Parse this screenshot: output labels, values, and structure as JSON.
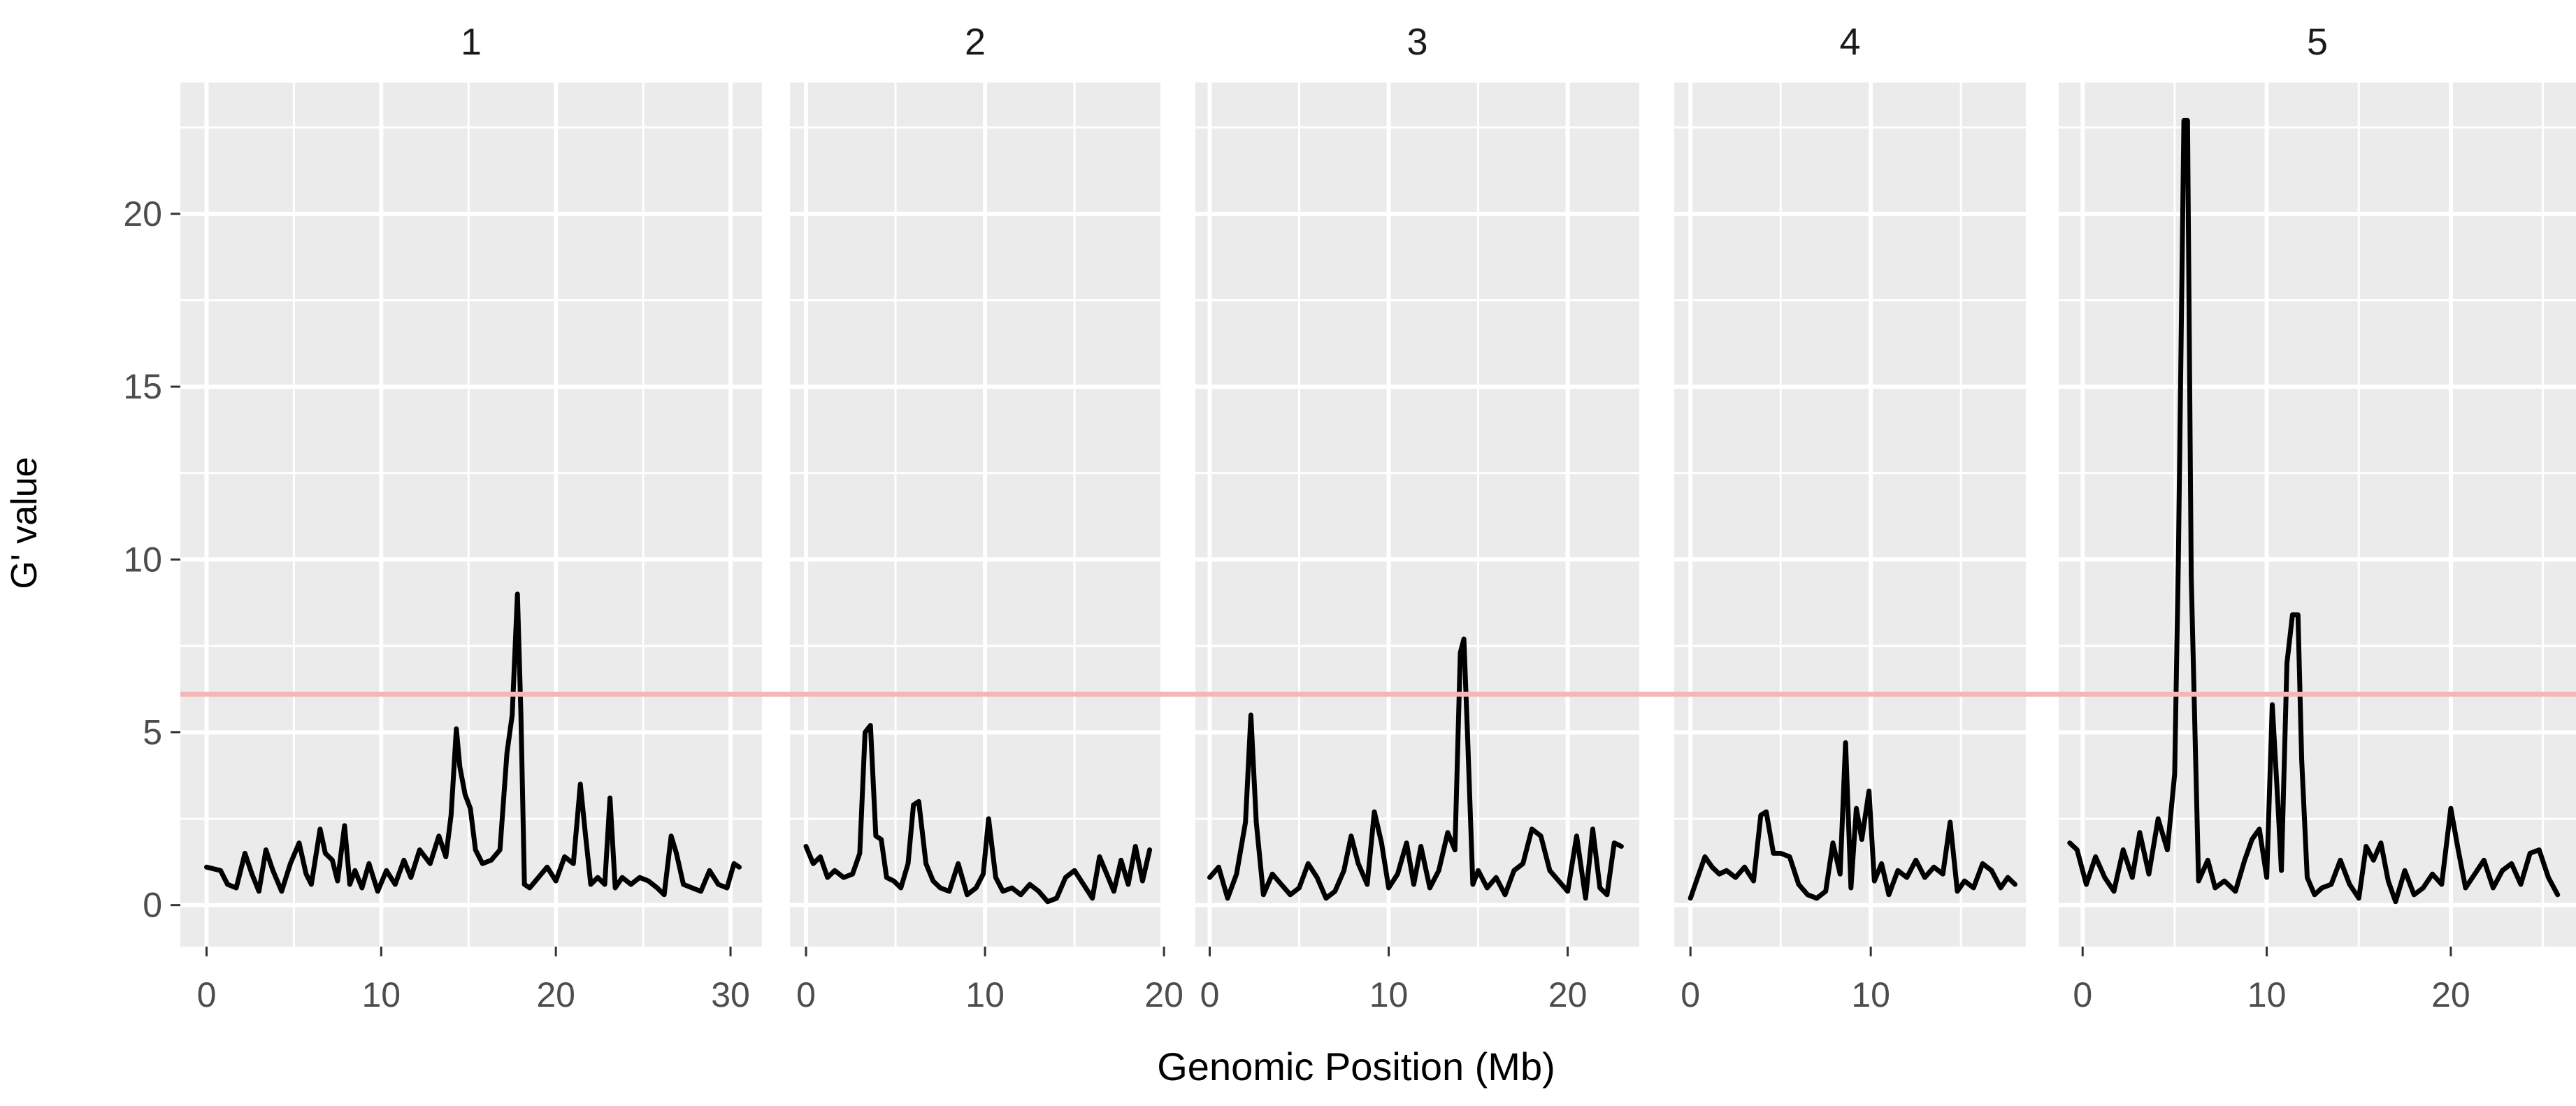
{
  "chart_data": {
    "type": "line",
    "xlabel": "Genomic Position (Mb)",
    "ylabel": "G' value",
    "ylim": [
      -1.2,
      23.8
    ],
    "yticks": [
      0,
      5,
      10,
      15,
      20
    ],
    "grid": true,
    "threshold": 6.1,
    "colors": {
      "line": "#000000",
      "threshold": "#f4b6b6",
      "panel_bg": "#ebebeb",
      "grid": "#ffffff",
      "tick_text": "#4d4d4d",
      "strip_text": "#1a1a1a"
    },
    "panels": [
      {
        "label": "1",
        "xlim": [
          -1.5,
          31.8
        ],
        "xticks": [
          0,
          10,
          20,
          30
        ],
        "x": [
          0,
          0.8,
          1.2,
          1.7,
          2.2,
          2.6,
          3.0,
          3.4,
          3.8,
          4.3,
          4.8,
          5.3,
          5.7,
          6.0,
          6.5,
          6.8,
          7.2,
          7.5,
          7.9,
          8.2,
          8.5,
          8.9,
          9.3,
          9.8,
          10.3,
          10.8,
          11.3,
          11.7,
          12.2,
          12.8,
          13.3,
          13.7,
          14.0,
          14.3,
          14.5,
          14.8,
          15.1,
          15.4,
          15.8,
          16.3,
          16.8,
          17.2,
          17.5,
          17.8,
          18.0,
          18.2,
          18.5,
          19.0,
          19.5,
          20.0,
          20.5,
          21.0,
          21.4,
          21.7,
          22.0,
          22.4,
          22.8,
          23.1,
          23.4,
          23.8,
          24.3,
          24.8,
          25.3,
          25.8,
          26.2,
          26.6,
          26.9,
          27.3,
          27.8,
          28.3,
          28.8,
          29.3,
          29.8,
          30.2,
          30.5
        ],
        "y": [
          1.1,
          1.0,
          0.6,
          0.5,
          1.5,
          0.9,
          0.4,
          1.6,
          1.0,
          0.4,
          1.2,
          1.8,
          0.9,
          0.6,
          2.2,
          1.5,
          1.3,
          0.7,
          2.3,
          0.6,
          1.0,
          0.5,
          1.2,
          0.4,
          1.0,
          0.6,
          1.3,
          0.8,
          1.6,
          1.2,
          2.0,
          1.4,
          2.6,
          5.1,
          4.0,
          3.2,
          2.8,
          1.6,
          1.2,
          1.3,
          1.6,
          4.4,
          5.5,
          9.0,
          5.5,
          0.6,
          0.5,
          0.8,
          1.1,
          0.7,
          1.4,
          1.2,
          3.5,
          2.0,
          0.6,
          0.8,
          0.6,
          3.1,
          0.5,
          0.8,
          0.6,
          0.8,
          0.7,
          0.5,
          0.3,
          2.0,
          1.5,
          0.6,
          0.5,
          0.4,
          1.0,
          0.6,
          0.5,
          1.2,
          1.1
        ]
      },
      {
        "label": "2",
        "xlim": [
          -0.9,
          19.8
        ],
        "xticks": [
          0,
          10,
          20
        ],
        "x": [
          0,
          0.4,
          0.8,
          1.2,
          1.6,
          2.1,
          2.6,
          3.0,
          3.3,
          3.6,
          3.9,
          4.2,
          4.5,
          4.9,
          5.3,
          5.7,
          6.0,
          6.3,
          6.7,
          7.1,
          7.5,
          8.0,
          8.5,
          9.0,
          9.5,
          9.9,
          10.2,
          10.6,
          11.0,
          11.5,
          12.0,
          12.5,
          13.0,
          13.5,
          14.0,
          14.5,
          15.0,
          15.5,
          16.0,
          16.4,
          16.8,
          17.2,
          17.6,
          18.0,
          18.4,
          18.8,
          19.2
        ],
        "y": [
          1.7,
          1.2,
          1.4,
          0.8,
          1.0,
          0.8,
          0.9,
          1.5,
          5.0,
          5.2,
          2.0,
          1.9,
          0.8,
          0.7,
          0.5,
          1.2,
          2.9,
          3.0,
          1.2,
          0.7,
          0.5,
          0.4,
          1.2,
          0.3,
          0.5,
          0.9,
          2.5,
          0.8,
          0.4,
          0.5,
          0.3,
          0.6,
          0.4,
          0.1,
          0.2,
          0.8,
          1.0,
          0.6,
          0.2,
          1.4,
          0.9,
          0.4,
          1.3,
          0.6,
          1.7,
          0.7,
          1.6
        ]
      },
      {
        "label": "3",
        "xlim": [
          -0.8,
          24.0
        ],
        "xticks": [
          0,
          10,
          20
        ],
        "x": [
          0,
          0.5,
          1.0,
          1.5,
          2.0,
          2.3,
          2.6,
          3.0,
          3.5,
          4.0,
          4.5,
          5.0,
          5.5,
          6.0,
          6.5,
          7.0,
          7.5,
          7.9,
          8.3,
          8.8,
          9.2,
          9.6,
          10.0,
          10.5,
          11.0,
          11.4,
          11.8,
          12.3,
          12.8,
          13.3,
          13.7,
          14.0,
          14.2,
          14.4,
          14.7,
          15.0,
          15.5,
          16.0,
          16.5,
          17.0,
          17.5,
          18.0,
          18.5,
          19.0,
          19.5,
          20.0,
          20.5,
          21.0,
          21.4,
          21.8,
          22.2,
          22.6,
          23.0
        ],
        "y": [
          0.8,
          1.1,
          0.2,
          0.9,
          2.4,
          5.5,
          2.4,
          0.3,
          0.9,
          0.6,
          0.3,
          0.5,
          1.2,
          0.8,
          0.2,
          0.4,
          1.0,
          2.0,
          1.2,
          0.6,
          2.7,
          1.8,
          0.5,
          0.9,
          1.8,
          0.6,
          1.7,
          0.5,
          1.0,
          2.1,
          1.6,
          7.3,
          7.7,
          5.0,
          0.6,
          1.0,
          0.5,
          0.8,
          0.3,
          1.0,
          1.2,
          2.2,
          2.0,
          1.0,
          0.7,
          0.4,
          2.0,
          0.2,
          2.2,
          0.5,
          0.3,
          1.8,
          1.7
        ]
      },
      {
        "label": "4",
        "xlim": [
          -0.9,
          18.6
        ],
        "xticks": [
          0,
          10
        ],
        "x": [
          0,
          0.4,
          0.8,
          1.2,
          1.6,
          2.0,
          2.5,
          3.0,
          3.5,
          3.9,
          4.2,
          4.6,
          5.0,
          5.5,
          6.0,
          6.5,
          7.0,
          7.5,
          7.9,
          8.3,
          8.6,
          8.9,
          9.2,
          9.5,
          9.9,
          10.2,
          10.6,
          11.0,
          11.5,
          12.0,
          12.5,
          13.0,
          13.5,
          14.0,
          14.4,
          14.8,
          15.2,
          15.7,
          16.2,
          16.7,
          17.2,
          17.6,
          18.0
        ],
        "y": [
          0.2,
          0.8,
          1.4,
          1.1,
          0.9,
          1.0,
          0.8,
          1.1,
          0.7,
          2.6,
          2.7,
          1.5,
          1.5,
          1.4,
          0.6,
          0.3,
          0.2,
          0.4,
          1.8,
          0.9,
          4.7,
          0.5,
          2.8,
          1.9,
          3.3,
          0.7,
          1.2,
          0.3,
          1.0,
          0.8,
          1.3,
          0.8,
          1.1,
          0.9,
          2.4,
          0.4,
          0.7,
          0.5,
          1.2,
          1.0,
          0.5,
          0.8,
          0.6
        ]
      },
      {
        "label": "5",
        "xlim": [
          -1.3,
          26.8
        ],
        "xticks": [
          0,
          10,
          20
        ],
        "x": [
          -0.7,
          -0.3,
          0.2,
          0.7,
          1.2,
          1.7,
          2.2,
          2.7,
          3.1,
          3.6,
          4.1,
          4.6,
          5.0,
          5.2,
          5.5,
          5.7,
          5.9,
          6.3,
          6.8,
          7.2,
          7.7,
          8.3,
          8.8,
          9.2,
          9.6,
          10.0,
          10.3,
          10.6,
          10.8,
          11.1,
          11.4,
          11.7,
          11.9,
          12.2,
          12.6,
          13.0,
          13.5,
          14.0,
          14.5,
          15.0,
          15.4,
          15.8,
          16.2,
          16.6,
          17.0,
          17.5,
          18.0,
          18.5,
          19.0,
          19.5,
          20.0,
          20.4,
          20.8,
          21.3,
          21.8,
          22.3,
          22.8,
          23.3,
          23.8,
          24.3,
          24.8,
          25.3,
          25.8
        ],
        "y": [
          1.8,
          1.6,
          0.6,
          1.4,
          0.8,
          0.4,
          1.6,
          0.8,
          2.1,
          0.9,
          2.5,
          1.6,
          3.8,
          10.0,
          22.7,
          22.7,
          9.5,
          0.7,
          1.3,
          0.5,
          0.7,
          0.4,
          1.3,
          1.9,
          2.2,
          0.8,
          5.8,
          3.0,
          1.0,
          7.0,
          8.4,
          8.4,
          4.2,
          0.8,
          0.3,
          0.5,
          0.6,
          1.3,
          0.6,
          0.2,
          1.7,
          1.3,
          1.8,
          0.7,
          0.1,
          1.0,
          0.3,
          0.5,
          0.9,
          0.6,
          2.8,
          1.6,
          0.5,
          0.9,
          1.3,
          0.5,
          1.0,
          1.2,
          0.6,
          1.5,
          1.6,
          0.8,
          0.3
        ]
      }
    ]
  }
}
